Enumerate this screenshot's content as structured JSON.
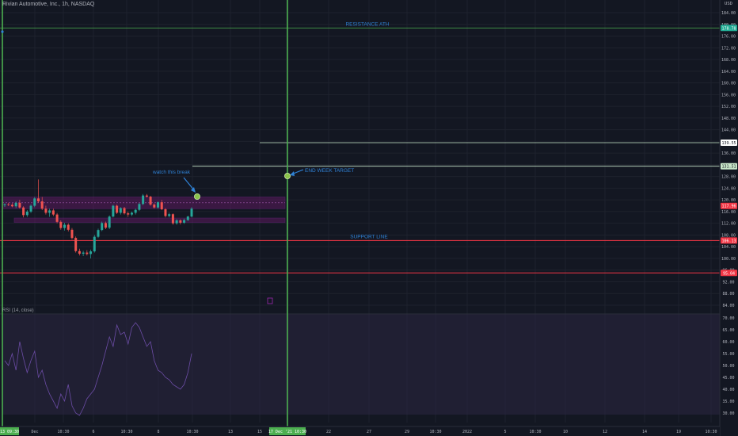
{
  "symbol": "Rivian Automotive, Inc., 1h, NASDAQ",
  "currency": "USD",
  "rsi_label": "RSI (14, close)",
  "price_ticks": [
    "184.00",
    "180.00",
    "176.00",
    "172.00",
    "168.00",
    "164.00",
    "160.00",
    "156.00",
    "152.00",
    "148.00",
    "144.00",
    "140.00",
    "136.00",
    "132.00",
    "128.00",
    "124.00",
    "120.00",
    "116.00",
    "112.00",
    "108.00",
    "104.00",
    "100.00",
    "96.00",
    "92.00",
    "88.00",
    "84.00"
  ],
  "rsi_ticks": [
    "70.00",
    "65.00",
    "60.00",
    "55.00",
    "50.00",
    "45.00",
    "40.00",
    "35.00",
    "30.00"
  ],
  "time_ticks": [
    "Dec",
    "10:30",
    "6",
    "10:30",
    "8",
    "10:30",
    "13",
    "15",
    "10:30",
    "22",
    "27",
    "29",
    "10:30",
    "2022",
    "5",
    "10:30",
    "10",
    "12",
    "14",
    "19",
    "10:30"
  ],
  "first_time_label": "13  09:30",
  "vline_time_label": "17 Dec '21  10:30",
  "price_tags": [
    {
      "price": 178.78,
      "label": "178.78",
      "bg": "#22ab94"
    },
    {
      "price": 139.55,
      "label": "139.55",
      "bg": "#ffffff"
    },
    {
      "price": 131.51,
      "label": "131.51",
      "bg": "#c8e6c9"
    },
    {
      "price": 117.96,
      "label": "117.96",
      "bg": "#f23645"
    },
    {
      "price": 106.13,
      "label": "106.13",
      "bg": "#f23645"
    },
    {
      "price": 95.04,
      "label": "95.04",
      "bg": "#f23645"
    }
  ],
  "annotations": {
    "resistance": "RESISTANCE ATH",
    "support": "SUPPORT LINE",
    "watch": "watch this break",
    "target": "END WEEK TARGET"
  },
  "levels": {
    "resistance": 178.78,
    "support": 106.13,
    "lower_support": 95.04,
    "short_line": 139.55,
    "target_line": 131.51
  },
  "colors": {
    "up": "#26a69a",
    "down": "#ef5350",
    "accent_green": "#4caf50",
    "annotation": "#2f82d6",
    "rsi_line": "#7e57c2"
  },
  "chart_data": {
    "type": "candlestick",
    "title": "Rivian Automotive, Inc., 1h, NASDAQ",
    "ylim": [
      84,
      186
    ],
    "candles": [
      [
        118.2,
        118.8,
        117.6,
        118.5
      ],
      [
        118.5,
        119.0,
        117.9,
        118.3
      ],
      [
        118.3,
        118.9,
        117.5,
        117.8
      ],
      [
        117.8,
        119.5,
        117.2,
        119.0
      ],
      [
        119.0,
        120.0,
        117.0,
        117.4
      ],
      [
        117.4,
        117.8,
        114.0,
        114.8
      ],
      [
        114.8,
        116.5,
        114.2,
        116.0
      ],
      [
        116.0,
        118.5,
        115.5,
        118.0
      ],
      [
        118.0,
        121.0,
        117.5,
        120.5
      ],
      [
        120.5,
        127.0,
        119.0,
        119.5
      ],
      [
        119.5,
        121.0,
        116.5,
        117.0
      ],
      [
        117.0,
        118.0,
        115.0,
        115.6
      ],
      [
        115.6,
        117.0,
        114.2,
        116.4
      ],
      [
        116.4,
        117.0,
        114.5,
        115.0
      ],
      [
        115.0,
        115.5,
        112.0,
        112.5
      ],
      [
        112.5,
        113.0,
        109.8,
        110.4
      ],
      [
        110.4,
        112.2,
        109.5,
        111.5
      ],
      [
        111.5,
        112.0,
        109.2,
        109.8
      ],
      [
        109.8,
        110.4,
        106.5,
        107.0
      ],
      [
        107.0,
        107.5,
        102.0,
        102.5
      ],
      [
        102.5,
        103.3,
        101.0,
        101.6
      ],
      [
        101.6,
        102.6,
        100.8,
        102.0
      ],
      [
        102.0,
        102.8,
        101.0,
        101.5
      ],
      [
        101.5,
        103.0,
        100.0,
        102.4
      ],
      [
        102.4,
        108.0,
        102.0,
        107.4
      ],
      [
        107.4,
        110.2,
        107.0,
        109.7
      ],
      [
        109.7,
        112.6,
        109.3,
        112.1
      ],
      [
        112.1,
        112.6,
        110.0,
        110.5
      ],
      [
        110.5,
        114.7,
        110.0,
        114.3
      ],
      [
        114.3,
        118.4,
        114.0,
        118.0
      ],
      [
        118.0,
        118.4,
        115.2,
        115.6
      ],
      [
        115.6,
        117.5,
        115.0,
        117.2
      ],
      [
        117.2,
        117.6,
        115.0,
        115.4
      ],
      [
        115.4,
        116.0,
        114.2,
        115.0
      ],
      [
        115.0,
        116.0,
        114.5,
        115.6
      ],
      [
        115.6,
        117.0,
        115.0,
        116.6
      ],
      [
        116.6,
        119.0,
        116.2,
        118.6
      ],
      [
        118.6,
        122.0,
        118.2,
        121.5
      ],
      [
        121.5,
        122.0,
        120.8,
        121.1
      ],
      [
        121.1,
        121.4,
        118.0,
        118.4
      ],
      [
        118.4,
        118.8,
        117.0,
        117.4
      ],
      [
        117.4,
        119.5,
        117.0,
        119.2
      ],
      [
        119.2,
        120.0,
        116.5,
        116.8
      ],
      [
        116.8,
        117.2,
        114.0,
        114.5
      ],
      [
        114.5,
        115.6,
        114.0,
        115.1
      ],
      [
        115.1,
        115.4,
        111.5,
        112.0
      ],
      [
        112.0,
        113.5,
        111.5,
        113.0
      ],
      [
        113.0,
        113.4,
        111.6,
        112.2
      ],
      [
        112.2,
        113.6,
        111.8,
        113.1
      ],
      [
        113.1,
        114.6,
        112.8,
        114.3
      ],
      [
        114.3,
        117.5,
        114.0,
        117.0
      ]
    ],
    "rsi": [
      52,
      50,
      55,
      48,
      60,
      53,
      47,
      52,
      56,
      45,
      48,
      42,
      38,
      35,
      32,
      38,
      35,
      42,
      33,
      30,
      29,
      32,
      36,
      38,
      40,
      45,
      50,
      56,
      62,
      58,
      67,
      63,
      64,
      59,
      66,
      68,
      66,
      62,
      58,
      60,
      52,
      48,
      47,
      45,
      44,
      42,
      41,
      40,
      42,
      47,
      55
    ]
  }
}
